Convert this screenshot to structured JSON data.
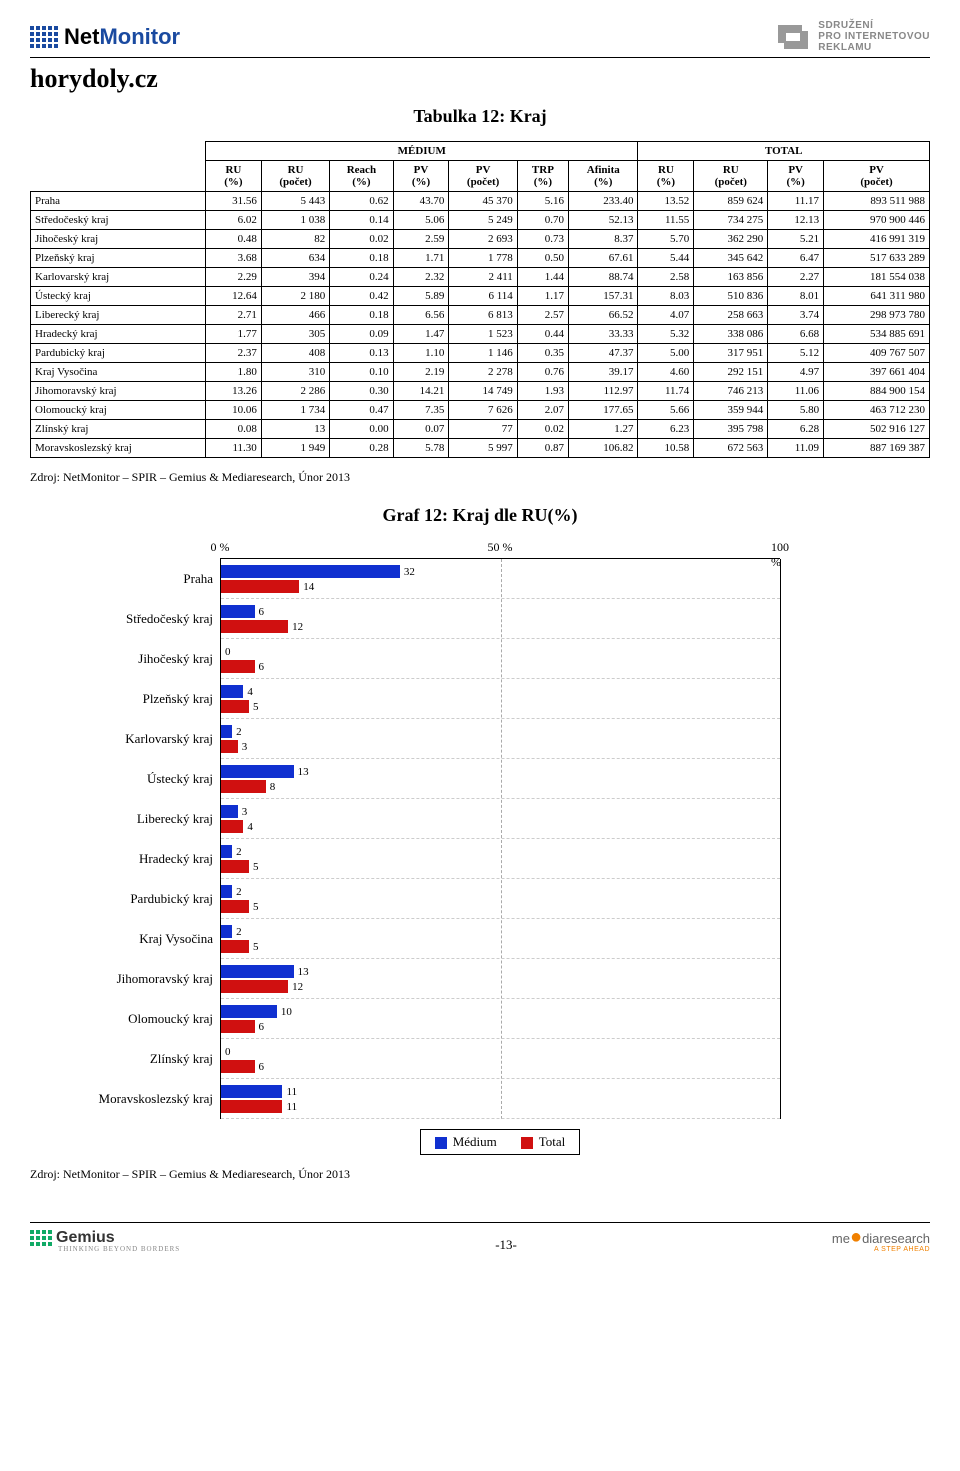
{
  "header": {
    "brand_net": "Net",
    "brand_monitor": "Monitor",
    "spir_line1": "SDRUŽENÍ",
    "spir_line2": "PRO INTERNETOVOU",
    "spir_line3": "REKLAMU"
  },
  "site_title": "horydoly.cz",
  "table_title": "Tabulka 12: Kraj",
  "group_medium": "MÉDIUM",
  "group_total": "TOTAL",
  "columns_medium": [
    "RU\n(%)",
    "RU\n(počet)",
    "Reach\n(%)",
    "PV\n(%)",
    "PV\n(počet)",
    "TRP\n(%)",
    "Afinita\n(%)"
  ],
  "columns_total": [
    "RU\n(%)",
    "RU\n(počet)",
    "PV\n(%)",
    "PV\n(počet)"
  ],
  "rows": [
    {
      "label": "Praha",
      "m": [
        "31.56",
        "5 443",
        "0.62",
        "43.70",
        "45 370",
        "5.16",
        "233.40"
      ],
      "t": [
        "13.52",
        "859 624",
        "11.17",
        "893 511 988"
      ]
    },
    {
      "label": "Středočeský kraj",
      "m": [
        "6.02",
        "1 038",
        "0.14",
        "5.06",
        "5 249",
        "0.70",
        "52.13"
      ],
      "t": [
        "11.55",
        "734 275",
        "12.13",
        "970 900 446"
      ]
    },
    {
      "label": "Jihočeský kraj",
      "m": [
        "0.48",
        "82",
        "0.02",
        "2.59",
        "2 693",
        "0.73",
        "8.37"
      ],
      "t": [
        "5.70",
        "362 290",
        "5.21",
        "416 991 319"
      ]
    },
    {
      "label": "Plzeňský kraj",
      "m": [
        "3.68",
        "634",
        "0.18",
        "1.71",
        "1 778",
        "0.50",
        "67.61"
      ],
      "t": [
        "5.44",
        "345 642",
        "6.47",
        "517 633 289"
      ]
    },
    {
      "label": "Karlovarský kraj",
      "m": [
        "2.29",
        "394",
        "0.24",
        "2.32",
        "2 411",
        "1.44",
        "88.74"
      ],
      "t": [
        "2.58",
        "163 856",
        "2.27",
        "181 554 038"
      ]
    },
    {
      "label": "Ústecký kraj",
      "m": [
        "12.64",
        "2 180",
        "0.42",
        "5.89",
        "6 114",
        "1.17",
        "157.31"
      ],
      "t": [
        "8.03",
        "510 836",
        "8.01",
        "641 311 980"
      ]
    },
    {
      "label": "Liberecký kraj",
      "m": [
        "2.71",
        "466",
        "0.18",
        "6.56",
        "6 813",
        "2.57",
        "66.52"
      ],
      "t": [
        "4.07",
        "258 663",
        "3.74",
        "298 973 780"
      ]
    },
    {
      "label": "Hradecký kraj",
      "m": [
        "1.77",
        "305",
        "0.09",
        "1.47",
        "1 523",
        "0.44",
        "33.33"
      ],
      "t": [
        "5.32",
        "338 086",
        "6.68",
        "534 885 691"
      ]
    },
    {
      "label": "Pardubický kraj",
      "m": [
        "2.37",
        "408",
        "0.13",
        "1.10",
        "1 146",
        "0.35",
        "47.37"
      ],
      "t": [
        "5.00",
        "317 951",
        "5.12",
        "409 767 507"
      ]
    },
    {
      "label": "Kraj Vysočina",
      "m": [
        "1.80",
        "310",
        "0.10",
        "2.19",
        "2 278",
        "0.76",
        "39.17"
      ],
      "t": [
        "4.60",
        "292 151",
        "4.97",
        "397 661 404"
      ]
    },
    {
      "label": "Jihomoravský kraj",
      "m": [
        "13.26",
        "2 286",
        "0.30",
        "14.21",
        "14 749",
        "1.93",
        "112.97"
      ],
      "t": [
        "11.74",
        "746 213",
        "11.06",
        "884 900 154"
      ]
    },
    {
      "label": "Olomoucký kraj",
      "m": [
        "10.06",
        "1 734",
        "0.47",
        "7.35",
        "7 626",
        "2.07",
        "177.65"
      ],
      "t": [
        "5.66",
        "359 944",
        "5.80",
        "463 712 230"
      ]
    },
    {
      "label": "Zlínský kraj",
      "m": [
        "0.08",
        "13",
        "0.00",
        "0.07",
        "77",
        "0.02",
        "1.27"
      ],
      "t": [
        "6.23",
        "395 798",
        "6.28",
        "502 916 127"
      ]
    },
    {
      "label": "Moravskoslezský kraj",
      "m": [
        "11.30",
        "1 949",
        "0.28",
        "5.78",
        "5 997",
        "0.87",
        "106.82"
      ],
      "t": [
        "10.58",
        "672 563",
        "11.09",
        "887 169 387"
      ]
    }
  ],
  "source_text": "Zdroj: NetMonitor – SPIR – Gemius & Mediaresearch, Únor 2013",
  "chart": {
    "title": "Graf 12: Kraj dle RU(%)",
    "axis_ticks": [
      {
        "pos": 0,
        "label": "0 %"
      },
      {
        "pos": 50,
        "label": "50 %"
      },
      {
        "pos": 100,
        "label": "100 %"
      }
    ],
    "colors": {
      "medium": "#1030d0",
      "total": "#d01010"
    },
    "legend": {
      "medium": "Médium",
      "total": "Total"
    },
    "series": [
      {
        "label": "Praha",
        "medium": 32,
        "total": 14
      },
      {
        "label": "Středočeský kraj",
        "medium": 6,
        "total": 12
      },
      {
        "label": "Jihočeský kraj",
        "medium": 0,
        "total": 6
      },
      {
        "label": "Plzeňský kraj",
        "medium": 4,
        "total": 5
      },
      {
        "label": "Karlovarský kraj",
        "medium": 2,
        "total": 3
      },
      {
        "label": "Ústecký kraj",
        "medium": 13,
        "total": 8
      },
      {
        "label": "Liberecký kraj",
        "medium": 3,
        "total": 4
      },
      {
        "label": "Hradecký kraj",
        "medium": 2,
        "total": 5
      },
      {
        "label": "Pardubický kraj",
        "medium": 2,
        "total": 5
      },
      {
        "label": "Kraj Vysočina",
        "medium": 2,
        "total": 5
      },
      {
        "label": "Jihomoravský kraj",
        "medium": 13,
        "total": 12
      },
      {
        "label": "Olomoucký kraj",
        "medium": 10,
        "total": 6
      },
      {
        "label": "Zlínský kraj",
        "medium": 0,
        "total": 6
      },
      {
        "label": "Moravskoslezský kraj",
        "medium": 11,
        "total": 11
      }
    ]
  },
  "footer": {
    "page": "-13-",
    "gemius": "Gemius",
    "gemius_sub": "THINKING BEYOND BORDERS",
    "mr": "mediaresearch",
    "mr_sub": "A STEP AHEAD"
  }
}
